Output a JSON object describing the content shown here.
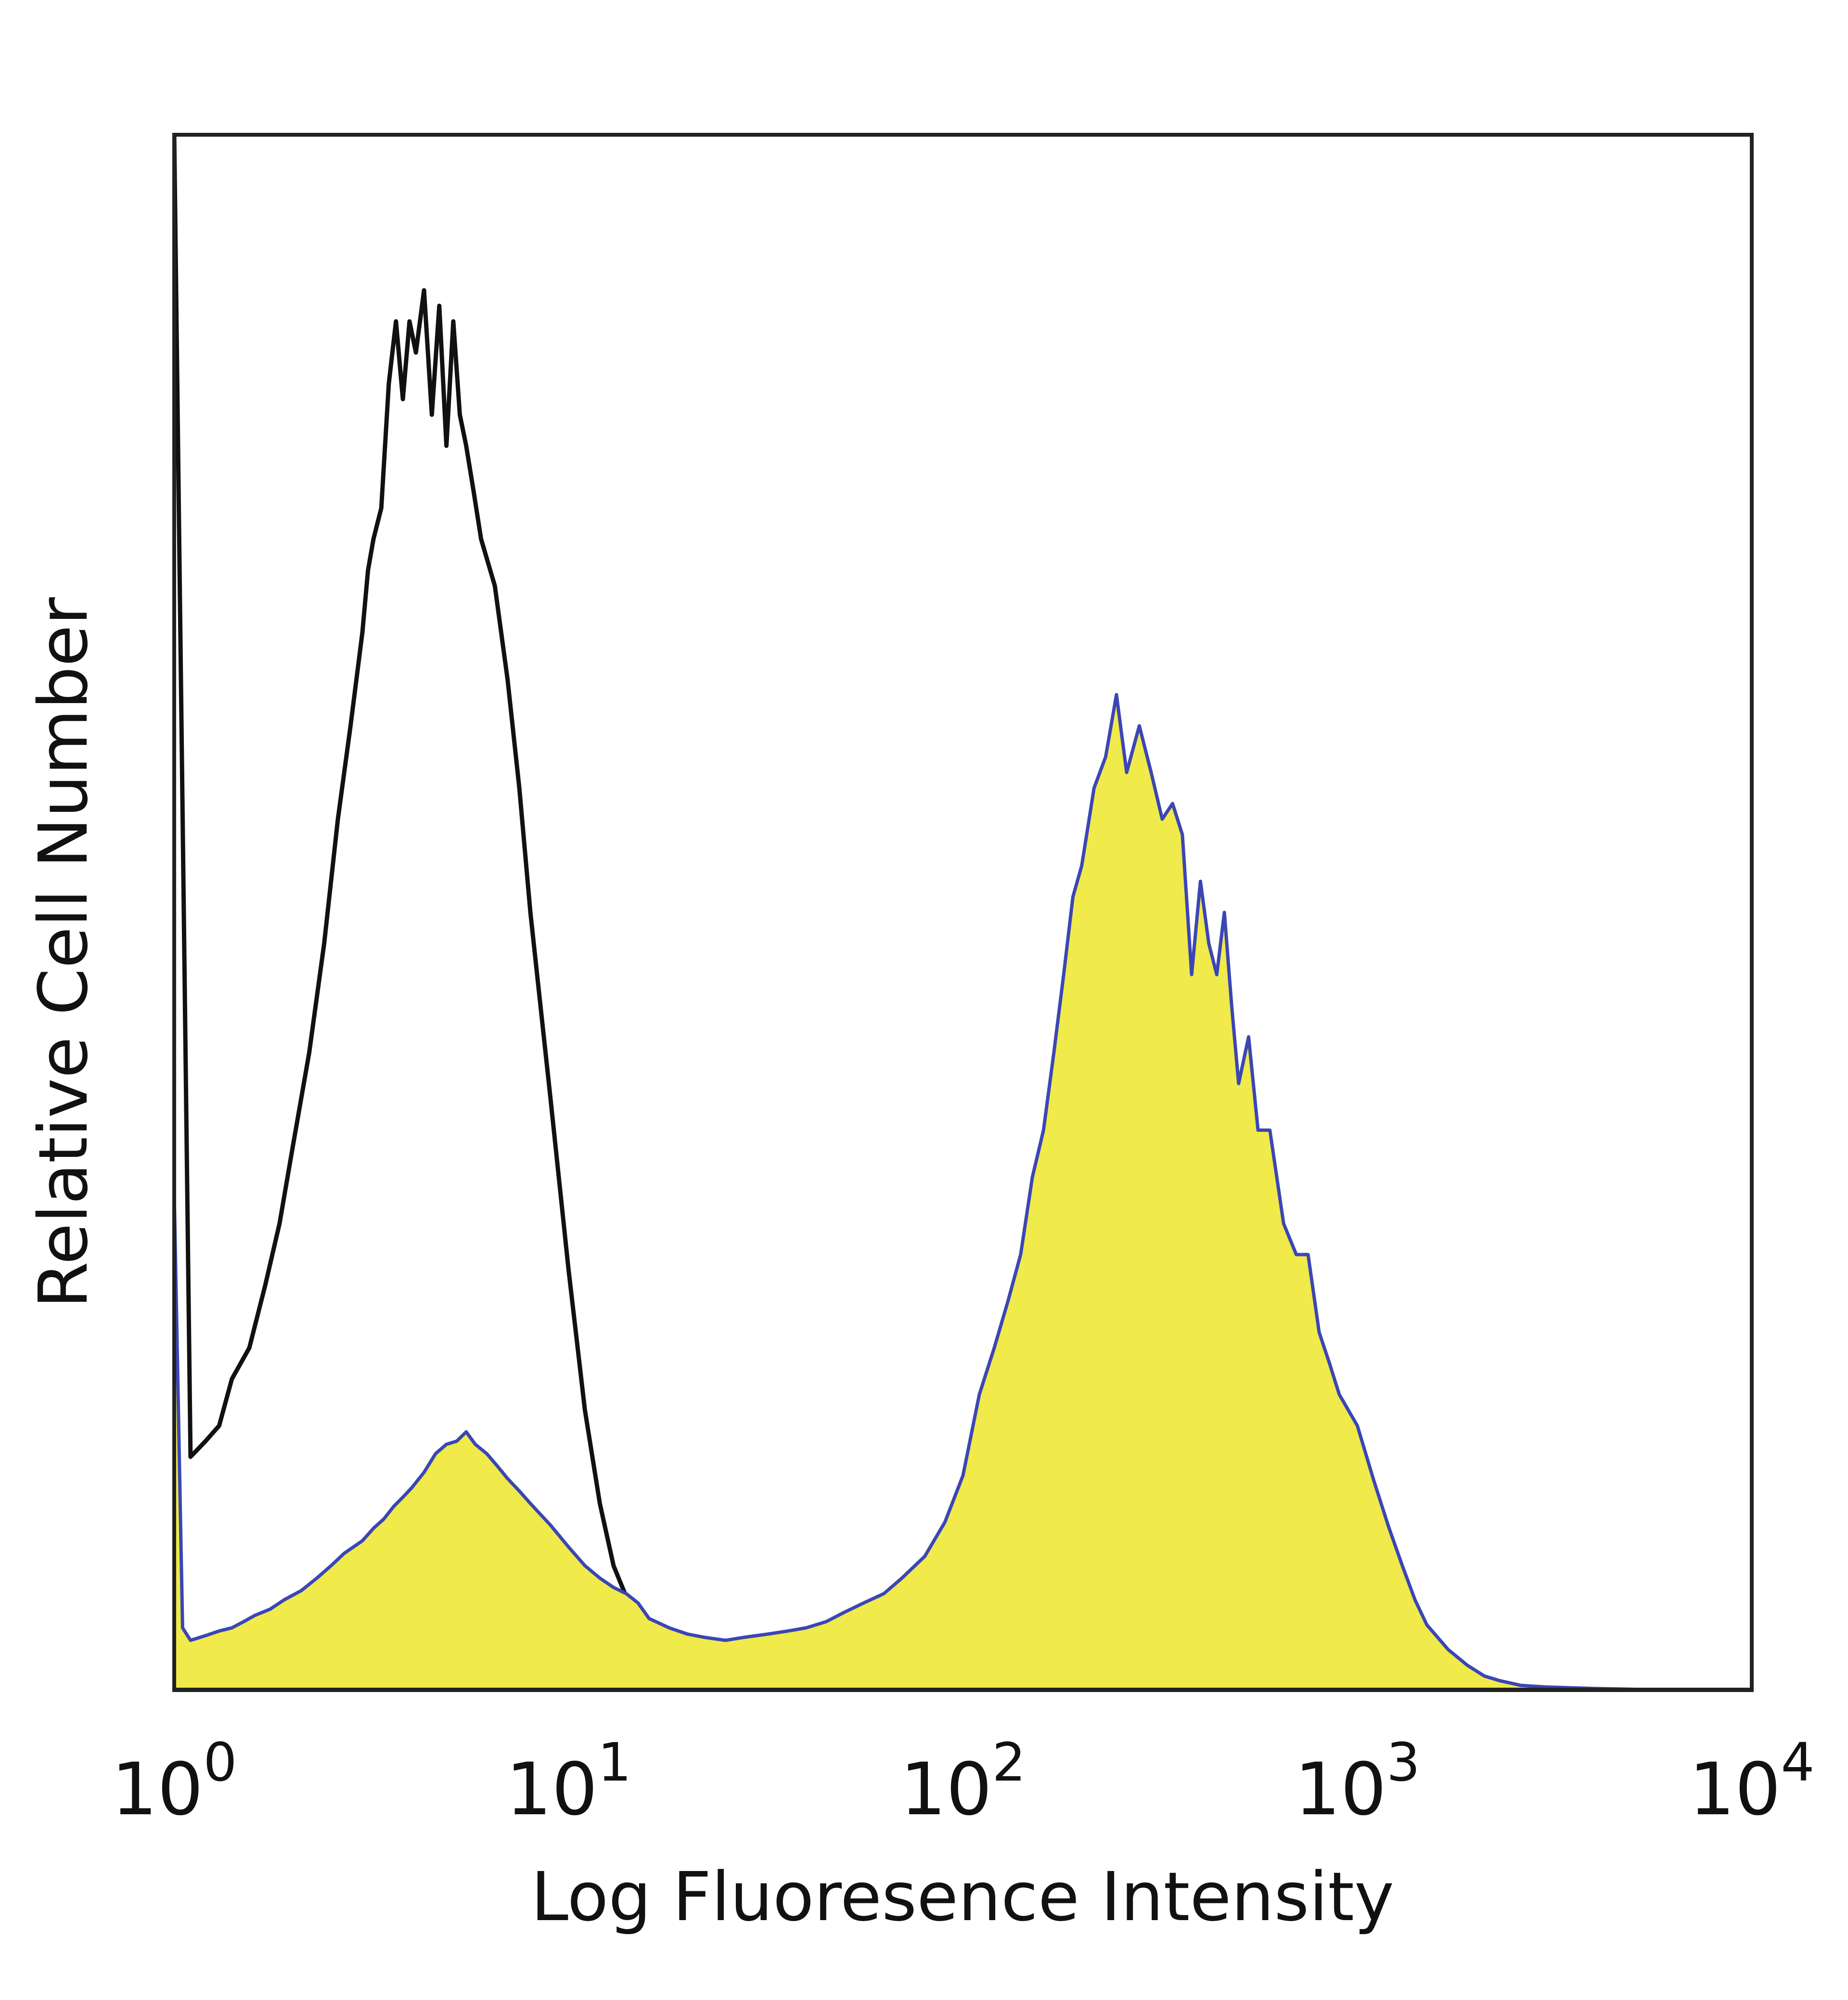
{
  "colors": {
    "filled_series_fill": "#f0ea4a",
    "filled_series_stroke": "#3b46b5",
    "outline_series_stroke": "#111111",
    "frame": "#222222",
    "background": "#ffffff"
  },
  "chart_data": {
    "type": "area",
    "title": "",
    "xlabel": "Log Fluoresence Intensity",
    "ylabel": "Relative Cell Number",
    "x_scale": "log",
    "xlim": [
      1,
      10000
    ],
    "ylim": [
      0,
      100
    ],
    "grid": false,
    "x_ticks": [
      {
        "value": 1,
        "base": "10",
        "exp": "0"
      },
      {
        "value": 10,
        "base": "10",
        "exp": "1"
      },
      {
        "value": 100,
        "base": "10",
        "exp": "2"
      },
      {
        "value": 1000,
        "base": "10",
        "exp": "3"
      },
      {
        "value": 10000,
        "base": "10",
        "exp": "4"
      }
    ],
    "series": [
      {
        "style": "outline",
        "x": [
          1,
          1.1,
          1.2,
          1.3,
          1.4,
          1.55,
          1.7,
          1.85,
          2,
          2.2,
          2.4,
          2.6,
          2.8,
          3.0,
          3.1,
          3.2,
          3.35,
          3.5,
          3.65,
          3.8,
          3.95,
          4.1,
          4.3,
          4.5,
          4.7,
          4.9,
          5.1,
          5.3,
          5.5,
          5.75,
          6.0,
          6.5,
          7.0,
          7.5,
          8,
          9,
          10,
          11,
          12,
          13,
          14,
          15,
          17,
          19,
          21,
          23,
          25,
          28,
          32,
          40,
          50,
          70,
          100,
          150,
          10000
        ],
        "values": [
          100,
          15,
          16,
          17,
          20,
          22,
          26,
          30,
          35,
          41,
          48,
          56,
          62,
          68,
          72,
          74,
          76,
          84,
          88,
          83,
          88,
          86,
          90,
          82,
          89,
          80,
          88,
          82,
          80,
          77,
          74,
          71,
          65,
          58,
          50,
          38,
          27,
          18,
          12,
          8,
          6,
          4,
          2.5,
          1.5,
          1.0,
          0.6,
          0.4,
          0.3,
          0.3,
          0.2,
          0.2,
          0.1,
          0.1,
          0,
          0
        ]
      },
      {
        "style": "filled",
        "x": [
          1,
          1.05,
          1.1,
          1.2,
          1.3,
          1.4,
          1.5,
          1.6,
          1.75,
          1.9,
          2.1,
          2.3,
          2.5,
          2.7,
          3.0,
          3.2,
          3.4,
          3.6,
          3.8,
          4.0,
          4.3,
          4.6,
          4.9,
          5.2,
          5.5,
          5.8,
          6.2,
          6.6,
          7.0,
          7.5,
          8,
          9,
          10,
          11,
          12,
          13,
          14,
          15,
          16,
          18,
          20,
          22,
          25,
          28,
          32,
          36,
          40,
          45,
          50,
          56,
          63,
          70,
          80,
          90,
          100,
          110,
          120,
          130,
          140,
          150,
          160,
          170,
          180,
          190,
          200,
          215,
          230,
          245,
          260,
          280,
          300,
          320,
          340,
          360,
          380,
          400,
          420,
          440,
          460,
          480,
          500,
          530,
          560,
          600,
          650,
          700,
          750,
          800,
          850,
          900,
          1000,
          1100,
          1200,
          1300,
          1400,
          1500,
          1700,
          1900,
          2100,
          2300,
          2600,
          3000,
          3500,
          4000,
          5000,
          6000,
          7000,
          8000,
          10000
        ],
        "values": [
          32,
          4,
          3.2,
          3.5,
          3.8,
          4.0,
          4.4,
          4.8,
          5.2,
          5.8,
          6.4,
          7.2,
          8.0,
          8.8,
          9.6,
          10.4,
          11.0,
          11.8,
          12.4,
          13.0,
          14.0,
          15.2,
          15.8,
          16.0,
          16.6,
          15.8,
          15.2,
          14.4,
          13.6,
          12.8,
          12.0,
          10.6,
          9.2,
          8.0,
          7.2,
          6.6,
          6.2,
          5.6,
          4.6,
          4.0,
          3.6,
          3.4,
          3.2,
          3.4,
          3.6,
          3.8,
          4.0,
          4.4,
          5.0,
          5.6,
          6.2,
          7.2,
          8.6,
          10.8,
          13.8,
          19,
          22,
          25,
          28,
          33,
          36,
          41,
          46,
          51,
          53,
          58,
          60,
          64,
          59,
          62,
          59,
          56,
          57,
          55,
          46,
          52,
          48,
          46,
          50,
          44,
          39,
          42,
          36,
          36,
          30,
          28,
          28,
          23,
          21,
          19,
          17,
          13.5,
          10.5,
          8.0,
          5.8,
          4.2,
          2.6,
          1.6,
          0.9,
          0.6,
          0.3,
          0.2,
          0.15,
          0.1,
          0.05,
          0,
          0,
          0,
          0
        ]
      }
    ]
  }
}
